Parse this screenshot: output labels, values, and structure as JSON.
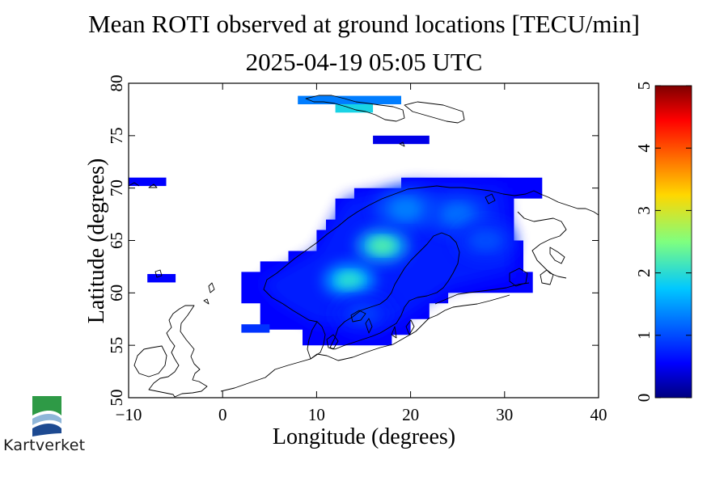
{
  "chart_data": {
    "type": "heatmap",
    "title": "Mean ROTI observed at ground locations [TECU/min]",
    "subtitle": "2025-04-19 05:05 UTC",
    "xlabel": "Longitude (degrees)",
    "ylabel": "Latitude (degrees)",
    "xlim": [
      -10,
      40
    ],
    "ylim": [
      50,
      80
    ],
    "xticks": [
      "−10",
      "0",
      "10",
      "20",
      "30",
      "40"
    ],
    "xtick_values": [
      -10,
      0,
      10,
      20,
      30,
      40
    ],
    "yticks": [
      "50",
      "55",
      "60",
      "65",
      "70",
      "75",
      "80"
    ],
    "ytick_values": [
      50,
      55,
      60,
      65,
      70,
      75,
      80
    ],
    "colorbar": {
      "min": 0,
      "max": 5,
      "ticks": [
        "0",
        "1",
        "2",
        "3",
        "4",
        "5"
      ],
      "tick_values": [
        0,
        1,
        2,
        3,
        4,
        5
      ]
    },
    "cells": [
      {
        "lon0": 8,
        "lon1": 19,
        "lat0": 78.0,
        "lat1": 78.8,
        "value": 1.3
      },
      {
        "lon0": 12,
        "lon1": 16,
        "lat0": 77.2,
        "lat1": 78.0,
        "value": 1.9
      },
      {
        "lon0": 16,
        "lon1": 22,
        "lat0": 74.2,
        "lat1": 75.0,
        "value": 0.45
      },
      {
        "lon0": -10,
        "lon1": -6,
        "lat0": 70.2,
        "lat1": 71.0,
        "value": 0.55
      },
      {
        "lon0": -8,
        "lon1": -5,
        "lat0": 61.0,
        "lat1": 61.8,
        "value": 0.55
      },
      {
        "lon0": 2,
        "lon1": 5,
        "lat0": 56.2,
        "lat1": 57.0,
        "value": 0.85
      }
    ],
    "regional_field": {
      "description_values": "mean ROTI over Scandinavia ranges about 0.5 to 2.3 TECU/min",
      "hotspots": [
        {
          "lon": 17,
          "lat": 64.5,
          "value": 2.2
        },
        {
          "lon": 13.5,
          "lat": 61.2,
          "value": 2.0
        },
        {
          "lon": 19.5,
          "lat": 68,
          "value": 1.3
        },
        {
          "lon": 25,
          "lat": 67.5,
          "value": 1.2
        },
        {
          "lon": 28,
          "lat": 65,
          "value": 1.0
        },
        {
          "lon": 15,
          "lat": 58,
          "value": 0.9
        }
      ]
    }
  },
  "logo": {
    "text": "Kartverket",
    "colors": [
      "#2e9a46",
      "#1d4a91"
    ]
  }
}
